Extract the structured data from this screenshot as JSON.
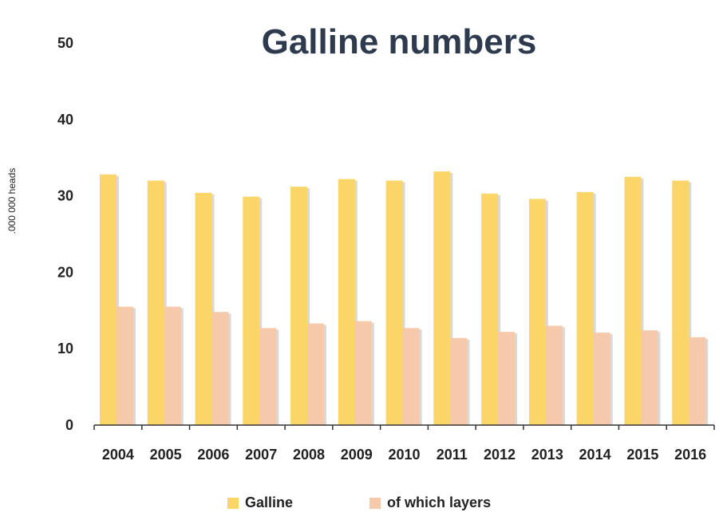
{
  "chart_data": {
    "type": "bar",
    "title": "Galline numbers",
    "ylabel": ".000 000 heads",
    "xlabel": "",
    "ylim": [
      0,
      50
    ],
    "yticks": [
      0,
      10,
      20,
      30,
      40,
      50
    ],
    "categories": [
      "2004",
      "2005",
      "2006",
      "2007",
      "2008",
      "2009",
      "2010",
      "2011",
      "2012",
      "2013",
      "2014",
      "2015",
      "2016"
    ],
    "series": [
      {
        "name": "Galline",
        "color": "#fbd567",
        "values": [
          32.8,
          32.0,
          30.4,
          29.9,
          31.2,
          32.2,
          32.0,
          33.2,
          30.3,
          29.6,
          30.5,
          32.5,
          32.0
        ]
      },
      {
        "name": "of which layers",
        "color": "#f6c9aa",
        "values": [
          15.5,
          15.5,
          14.8,
          12.7,
          13.3,
          13.6,
          12.7,
          11.4,
          12.2,
          13.0,
          12.1,
          12.4,
          11.5
        ]
      }
    ],
    "grid": false,
    "legend_position": "bottom"
  }
}
